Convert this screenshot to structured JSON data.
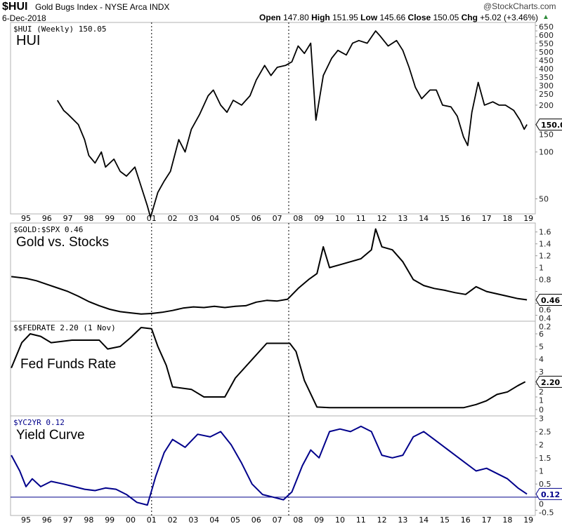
{
  "header": {
    "symbol": "$HUI",
    "name": "Gold Bugs Index - NYSE Arca INDX",
    "date": "6-Dec-2018",
    "brand": "@StockCharts.com",
    "ohlc": [
      {
        "k": "Open",
        "v": "147.80"
      },
      {
        "k": "High",
        "v": "151.95"
      },
      {
        "k": "Low",
        "v": "145.66"
      },
      {
        "k": "Close",
        "v": "150.05"
      },
      {
        "k": "Chg",
        "v": "+5.02 (+3.46%)"
      }
    ],
    "chg_icon": "triangle-up-icon",
    "up_color": "#2e8b3a"
  },
  "chart_data": [
    {
      "type": "line",
      "legend": "$HUI (Weekly) 150.05",
      "label": "HUI",
      "scale": "log",
      "ylim": [
        40,
        680
      ],
      "last": "150.05",
      "color": "#000000",
      "yticks": [
        50,
        100,
        150,
        200,
        250,
        300,
        350,
        400,
        450,
        500,
        550,
        600,
        650
      ],
      "x": [
        1996.5,
        1996.8,
        1997.0,
        1997.5,
        1997.8,
        1998.0,
        1998.3,
        1998.6,
        1998.8,
        1999.2,
        1999.5,
        1999.8,
        2000.2,
        2000.5,
        2000.8,
        2000.95,
        2001.3,
        2001.6,
        2001.9,
        2002.3,
        2002.6,
        2002.9,
        2003.3,
        2003.7,
        2003.95,
        2004.3,
        2004.6,
        2004.9,
        2005.3,
        2005.7,
        2006.0,
        2006.4,
        2006.7,
        2007.0,
        2007.4,
        2007.7,
        2008.0,
        2008.3,
        2008.6,
        2008.85,
        2009.2,
        2009.6,
        2009.9,
        2010.3,
        2010.6,
        2010.9,
        2011.3,
        2011.7,
        2011.9,
        2012.3,
        2012.7,
        2013.0,
        2013.3,
        2013.6,
        2013.9,
        2014.3,
        2014.6,
        2014.9,
        2015.3,
        2015.6,
        2015.9,
        2016.1,
        2016.3,
        2016.6,
        2016.9,
        2017.3,
        2017.6,
        2017.9,
        2018.3,
        2018.6,
        2018.8,
        2018.93
      ],
      "y": [
        215,
        185,
        175,
        150,
        120,
        95,
        85,
        100,
        80,
        90,
        75,
        70,
        80,
        60,
        45,
        38,
        55,
        65,
        75,
        120,
        100,
        140,
        175,
        230,
        250,
        200,
        180,
        215,
        200,
        230,
        290,
        360,
        310,
        350,
        360,
        380,
        480,
        430,
        500,
        160,
        310,
        400,
        450,
        420,
        500,
        520,
        500,
        600,
        560,
        480,
        520,
        450,
        350,
        260,
        220,
        250,
        250,
        200,
        195,
        170,
        125,
        110,
        180,
        280,
        200,
        210,
        200,
        200,
        185,
        160,
        140,
        150
      ]
    },
    {
      "type": "line",
      "legend": "$GOLD:$SPX 0.46",
      "label": "Gold vs. Stocks",
      "ylim": [
        0.1,
        1.75
      ],
      "last": "0.46",
      "color": "#000000",
      "yticks": [
        0.2,
        0.4,
        0.6,
        0.8,
        1.0,
        1.2,
        1.4,
        1.6
      ],
      "x": [
        1994.3,
        1995.0,
        1995.5,
        1996.0,
        1996.5,
        1997.0,
        1997.5,
        1998.0,
        1998.5,
        1999.0,
        1999.5,
        2000.0,
        2000.5,
        2001.0,
        2001.5,
        2002.0,
        2002.5,
        2003.0,
        2003.5,
        2004.0,
        2004.5,
        2005.0,
        2005.5,
        2006.0,
        2006.5,
        2007.0,
        2007.5,
        2008.0,
        2008.5,
        2008.9,
        2009.2,
        2009.5,
        2010.0,
        2010.5,
        2011.0,
        2011.5,
        2011.7,
        2012.0,
        2012.5,
        2013.0,
        2013.5,
        2014.0,
        2014.5,
        2015.0,
        2015.5,
        2016.0,
        2016.5,
        2017.0,
        2017.5,
        2018.0,
        2018.5,
        2018.93
      ],
      "y": [
        0.85,
        0.82,
        0.78,
        0.72,
        0.66,
        0.6,
        0.52,
        0.43,
        0.36,
        0.3,
        0.26,
        0.24,
        0.22,
        0.23,
        0.25,
        0.28,
        0.32,
        0.34,
        0.33,
        0.35,
        0.33,
        0.35,
        0.36,
        0.42,
        0.45,
        0.44,
        0.47,
        0.65,
        0.8,
        0.9,
        1.35,
        1.0,
        1.05,
        1.1,
        1.15,
        1.3,
        1.65,
        1.35,
        1.3,
        1.1,
        0.8,
        0.7,
        0.65,
        0.62,
        0.58,
        0.55,
        0.68,
        0.6,
        0.56,
        0.52,
        0.48,
        0.46
      ]
    },
    {
      "type": "line",
      "legend": "$$FEDRATE 2.20 (1 Nov)",
      "label": "Fed Funds Rate",
      "ylim": [
        -0.5,
        7
      ],
      "last": "2.20",
      "color": "#000000",
      "yticks": [
        0,
        1,
        2,
        3,
        4,
        5,
        6
      ],
      "x": [
        1994.3,
        1994.8,
        1995.2,
        1995.7,
        1996.2,
        1997.2,
        1998.5,
        1998.9,
        1999.5,
        2000.0,
        2000.5,
        2001.0,
        2001.3,
        2001.7,
        2002.0,
        2002.9,
        2003.5,
        2004.5,
        2005.0,
        2006.5,
        2007.6,
        2007.9,
        2008.3,
        2008.9,
        2009.5,
        2015.9,
        2016.5,
        2017.0,
        2017.5,
        2018.0,
        2018.5,
        2018.85
      ],
      "y": [
        3.3,
        5.3,
        6.0,
        5.8,
        5.3,
        5.5,
        5.5,
        4.8,
        5.0,
        5.7,
        6.5,
        6.4,
        5.0,
        3.5,
        1.8,
        1.6,
        1.0,
        1.0,
        2.5,
        5.25,
        5.25,
        4.6,
        2.3,
        0.2,
        0.15,
        0.15,
        0.4,
        0.7,
        1.2,
        1.4,
        1.9,
        2.2
      ]
    },
    {
      "type": "line",
      "legend": "$YC2YR 0.12",
      "label": "Yield Curve",
      "ylim": [
        -0.7,
        3.1
      ],
      "last": "0.12",
      "color": "#00008b",
      "hline": 0,
      "yticks": [
        -0.5,
        0.0,
        0.5,
        1.0,
        1.5,
        2.0,
        2.5,
        3.0
      ],
      "x": [
        1994.3,
        1994.7,
        1995.0,
        1995.3,
        1995.7,
        1996.2,
        1996.8,
        1997.3,
        1997.8,
        1998.3,
        1998.8,
        1999.3,
        1999.8,
        2000.3,
        2000.8,
        2001.2,
        2001.6,
        2002.0,
        2002.6,
        2003.2,
        2003.8,
        2004.3,
        2004.8,
        2005.3,
        2005.8,
        2006.3,
        2006.8,
        2007.3,
        2007.7,
        2008.2,
        2008.6,
        2009.0,
        2009.5,
        2010.0,
        2010.5,
        2011.0,
        2011.5,
        2012.0,
        2012.5,
        2013.0,
        2013.5,
        2014.0,
        2014.5,
        2015.0,
        2015.5,
        2016.0,
        2016.5,
        2017.0,
        2017.5,
        2018.0,
        2018.5,
        2018.93
      ],
      "y": [
        1.6,
        1.0,
        0.4,
        0.7,
        0.4,
        0.6,
        0.5,
        0.4,
        0.3,
        0.25,
        0.35,
        0.3,
        0.1,
        -0.2,
        -0.3,
        0.8,
        1.7,
        2.2,
        1.9,
        2.4,
        2.3,
        2.5,
        2.0,
        1.3,
        0.5,
        0.1,
        0.0,
        -0.1,
        0.2,
        1.2,
        1.8,
        1.5,
        2.5,
        2.6,
        2.5,
        2.7,
        2.5,
        1.6,
        1.5,
        1.6,
        2.3,
        2.5,
        2.2,
        1.9,
        1.6,
        1.3,
        1.0,
        1.1,
        0.9,
        0.7,
        0.35,
        0.12
      ]
    }
  ],
  "xaxis": {
    "ticks": [
      "95",
      "96",
      "97",
      "98",
      "99",
      "00",
      "01",
      "02",
      "03",
      "04",
      "05",
      "06",
      "07",
      "08",
      "09",
      "10",
      "11",
      "12",
      "13",
      "14",
      "15",
      "16",
      "17",
      "18",
      "19"
    ],
    "markers": [
      2001.0,
      2007.55
    ]
  }
}
